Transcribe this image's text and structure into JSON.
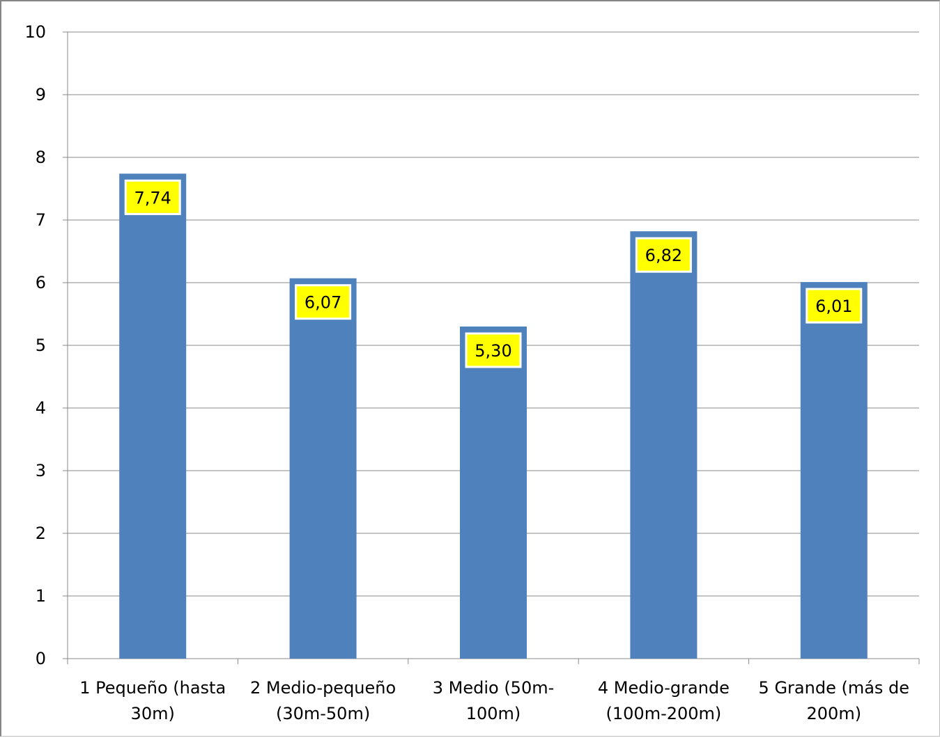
{
  "chart_data": {
    "type": "bar",
    "categories": [
      [
        "1 Pequeño (hasta",
        "30m)"
      ],
      [
        "2 Medio-pequeño",
        "(30m-50m)"
      ],
      [
        "3 Medio (50m-",
        "100m)"
      ],
      [
        "4 Medio-grande",
        "(100m-200m)"
      ],
      [
        "5 Grande (más de",
        "200m)"
      ]
    ],
    "values": [
      7.74,
      6.07,
      5.3,
      6.82,
      6.01
    ],
    "data_labels": [
      "7,74",
      "6,07",
      "5,30",
      "6,82",
      "6,01"
    ],
    "y_ticks": [
      "0",
      "1",
      "2",
      "3",
      "4",
      "5",
      "6",
      "7",
      "8",
      "9",
      "10"
    ],
    "ylim": [
      0,
      10
    ],
    "grid": true,
    "legend": "none",
    "colors": {
      "bar": "#4f81bd",
      "label_fill": "#ffff00",
      "gridline": "#888888"
    }
  }
}
